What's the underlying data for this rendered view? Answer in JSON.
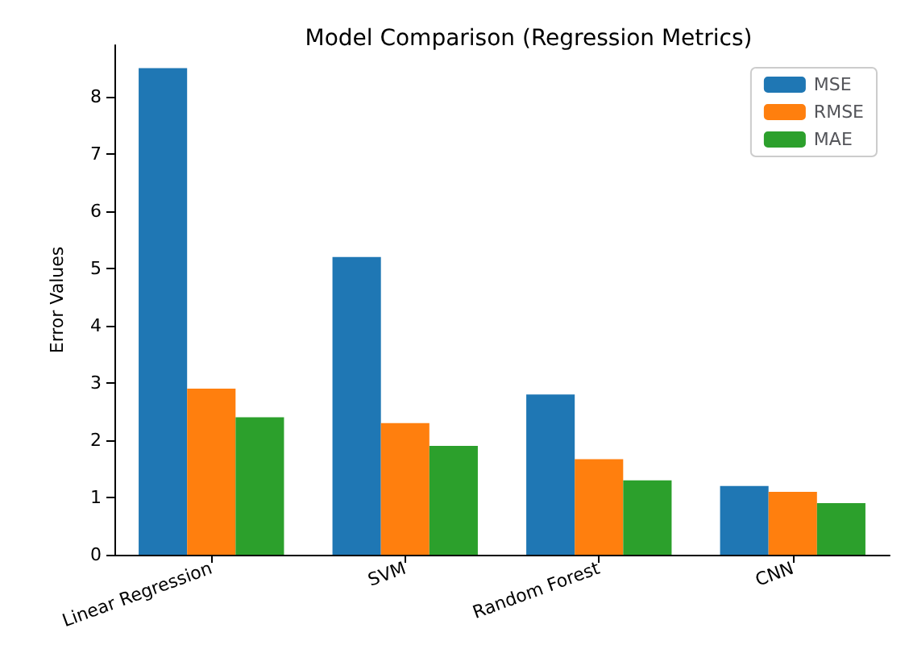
{
  "chart_data": {
    "type": "bar",
    "title": "Model Comparison (Regression Metrics)",
    "ylabel": "Error Values",
    "categories": [
      "Linear Regression",
      "SVM",
      "Random Forest",
      "CNN"
    ],
    "series": [
      {
        "name": "MSE",
        "color": "#1f77b4",
        "values": [
          8.5,
          5.2,
          2.8,
          1.2
        ]
      },
      {
        "name": "RMSE",
        "color": "#ff7f0e",
        "values": [
          2.9,
          2.3,
          1.67,
          1.1
        ]
      },
      {
        "name": "MAE",
        "color": "#2ca02c",
        "values": [
          2.4,
          1.9,
          1.3,
          0.9
        ]
      }
    ],
    "ylim": [
      0,
      8.9
    ],
    "yticks": [
      0,
      1,
      2,
      3,
      4,
      5,
      6,
      7,
      8
    ],
    "legend": "top right",
    "grid": false
  }
}
